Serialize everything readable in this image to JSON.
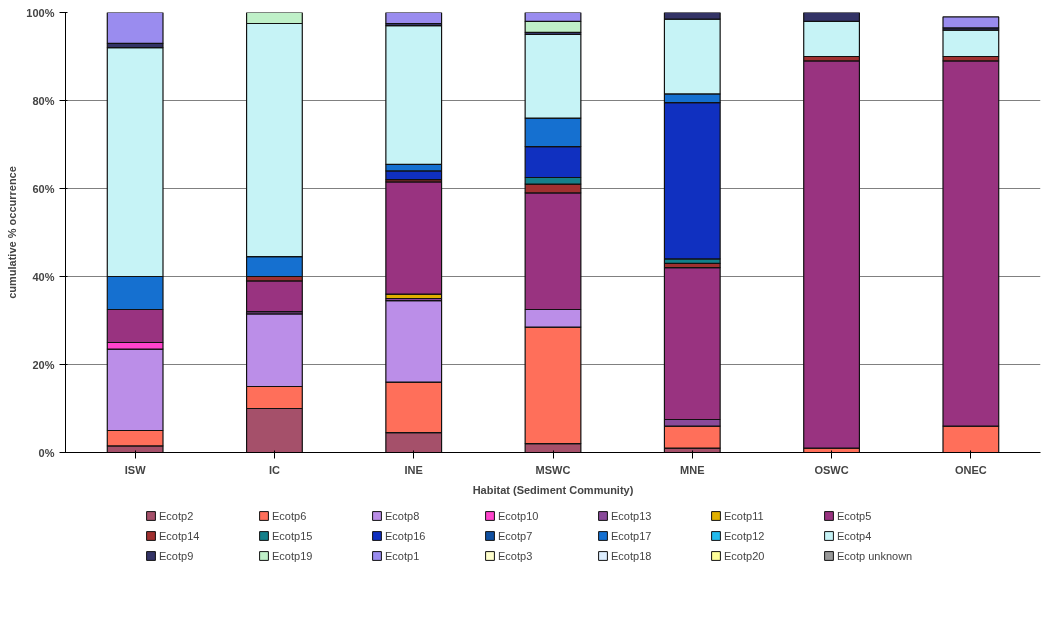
{
  "chart_data": {
    "type": "bar",
    "stacked": true,
    "xlabel": "Habitat (Sediment Community)",
    "ylabel": "cumulative % occurrence",
    "categories": [
      "ISW",
      "IC",
      "INE",
      "MSWC",
      "MNE",
      "OSWC",
      "ONEC"
    ],
    "ylim": [
      0,
      100
    ],
    "yticks": [
      {
        "value": 0,
        "label": "0%"
      },
      {
        "value": 20,
        "label": "20%"
      },
      {
        "value": 40,
        "label": "40%"
      },
      {
        "value": 60,
        "label": "60%"
      },
      {
        "value": 80,
        "label": "80%"
      },
      {
        "value": 100,
        "label": "100%"
      }
    ],
    "grid": "y",
    "legend": "bottom",
    "series": [
      {
        "name": "Ecotp2",
        "color": "#a5506a",
        "values": [
          1.5,
          10,
          4.5,
          2,
          1,
          0,
          0
        ]
      },
      {
        "name": "Ecotp6",
        "color": "#ff6f5a",
        "values": [
          3.5,
          5,
          11.5,
          26.5,
          5,
          1,
          6
        ]
      },
      {
        "name": "Ecotp8",
        "color": "#bb8ee8",
        "values": [
          18.5,
          16.5,
          18.5,
          4,
          0,
          0,
          0
        ]
      },
      {
        "name": "Ecotp10",
        "color": "#ff44cc",
        "values": [
          1.5,
          0,
          0,
          0,
          0,
          0,
          0
        ]
      },
      {
        "name": "Ecotp13",
        "color": "#8a4a9a",
        "values": [
          0,
          0.5,
          0.5,
          0,
          1.5,
          0,
          0
        ]
      },
      {
        "name": "Ecotp11",
        "color": "#e0b000",
        "values": [
          0,
          0,
          1,
          0,
          0,
          0,
          0
        ]
      },
      {
        "name": "Ecotp5",
        "color": "#993380",
        "values": [
          7.5,
          7,
          25.5,
          26.5,
          34.5,
          88,
          83
        ]
      },
      {
        "name": "Ecotp14",
        "color": "#a03030",
        "values": [
          0,
          1,
          0.5,
          2,
          1,
          1,
          1
        ]
      },
      {
        "name": "Ecotp15",
        "color": "#14808a",
        "values": [
          0,
          0,
          0,
          1.5,
          1,
          0,
          0
        ]
      },
      {
        "name": "Ecotp16",
        "color": "#1030c0",
        "values": [
          0,
          0,
          2,
          7,
          35.5,
          0,
          0
        ]
      },
      {
        "name": "Ecotp7",
        "color": "#1050a0",
        "values": [
          0,
          0,
          0,
          0,
          0,
          0,
          0
        ]
      },
      {
        "name": "Ecotp17",
        "color": "#1570d0",
        "values": [
          7.5,
          4.5,
          1.5,
          6.5,
          2,
          0,
          0
        ]
      },
      {
        "name": "Ecotp12",
        "color": "#22bbee",
        "values": [
          0,
          0,
          0,
          0,
          0,
          0,
          0
        ]
      },
      {
        "name": "Ecotp4",
        "color": "#c6f3f6",
        "values": [
          52,
          53,
          31.5,
          19,
          17,
          8,
          6
        ]
      },
      {
        "name": "Ecotp9",
        "color": "#333366",
        "values": [
          1,
          0,
          0.5,
          0.5,
          1.5,
          2,
          0.5
        ]
      },
      {
        "name": "Ecotp19",
        "color": "#bff0c8",
        "values": [
          0,
          2.5,
          0,
          2.5,
          0,
          0,
          0
        ]
      },
      {
        "name": "Ecotp1",
        "color": "#9a8cef",
        "values": [
          7,
          0,
          2.5,
          2,
          0,
          0,
          2.5
        ]
      },
      {
        "name": "Ecotp3",
        "color": "#ffffcc",
        "values": [
          0,
          0,
          0,
          0,
          0,
          0,
          0
        ]
      },
      {
        "name": "Ecotp18",
        "color": "#ddeeff",
        "values": [
          0,
          0,
          0,
          0,
          0,
          0,
          0
        ]
      },
      {
        "name": "Ecotp20",
        "color": "#ffff99",
        "values": [
          0,
          0,
          0,
          0,
          0,
          0,
          0
        ]
      },
      {
        "name": "Ecotp unknown",
        "color": "#999999",
        "values": [
          0,
          0,
          0,
          0,
          0,
          0,
          0
        ]
      }
    ]
  }
}
